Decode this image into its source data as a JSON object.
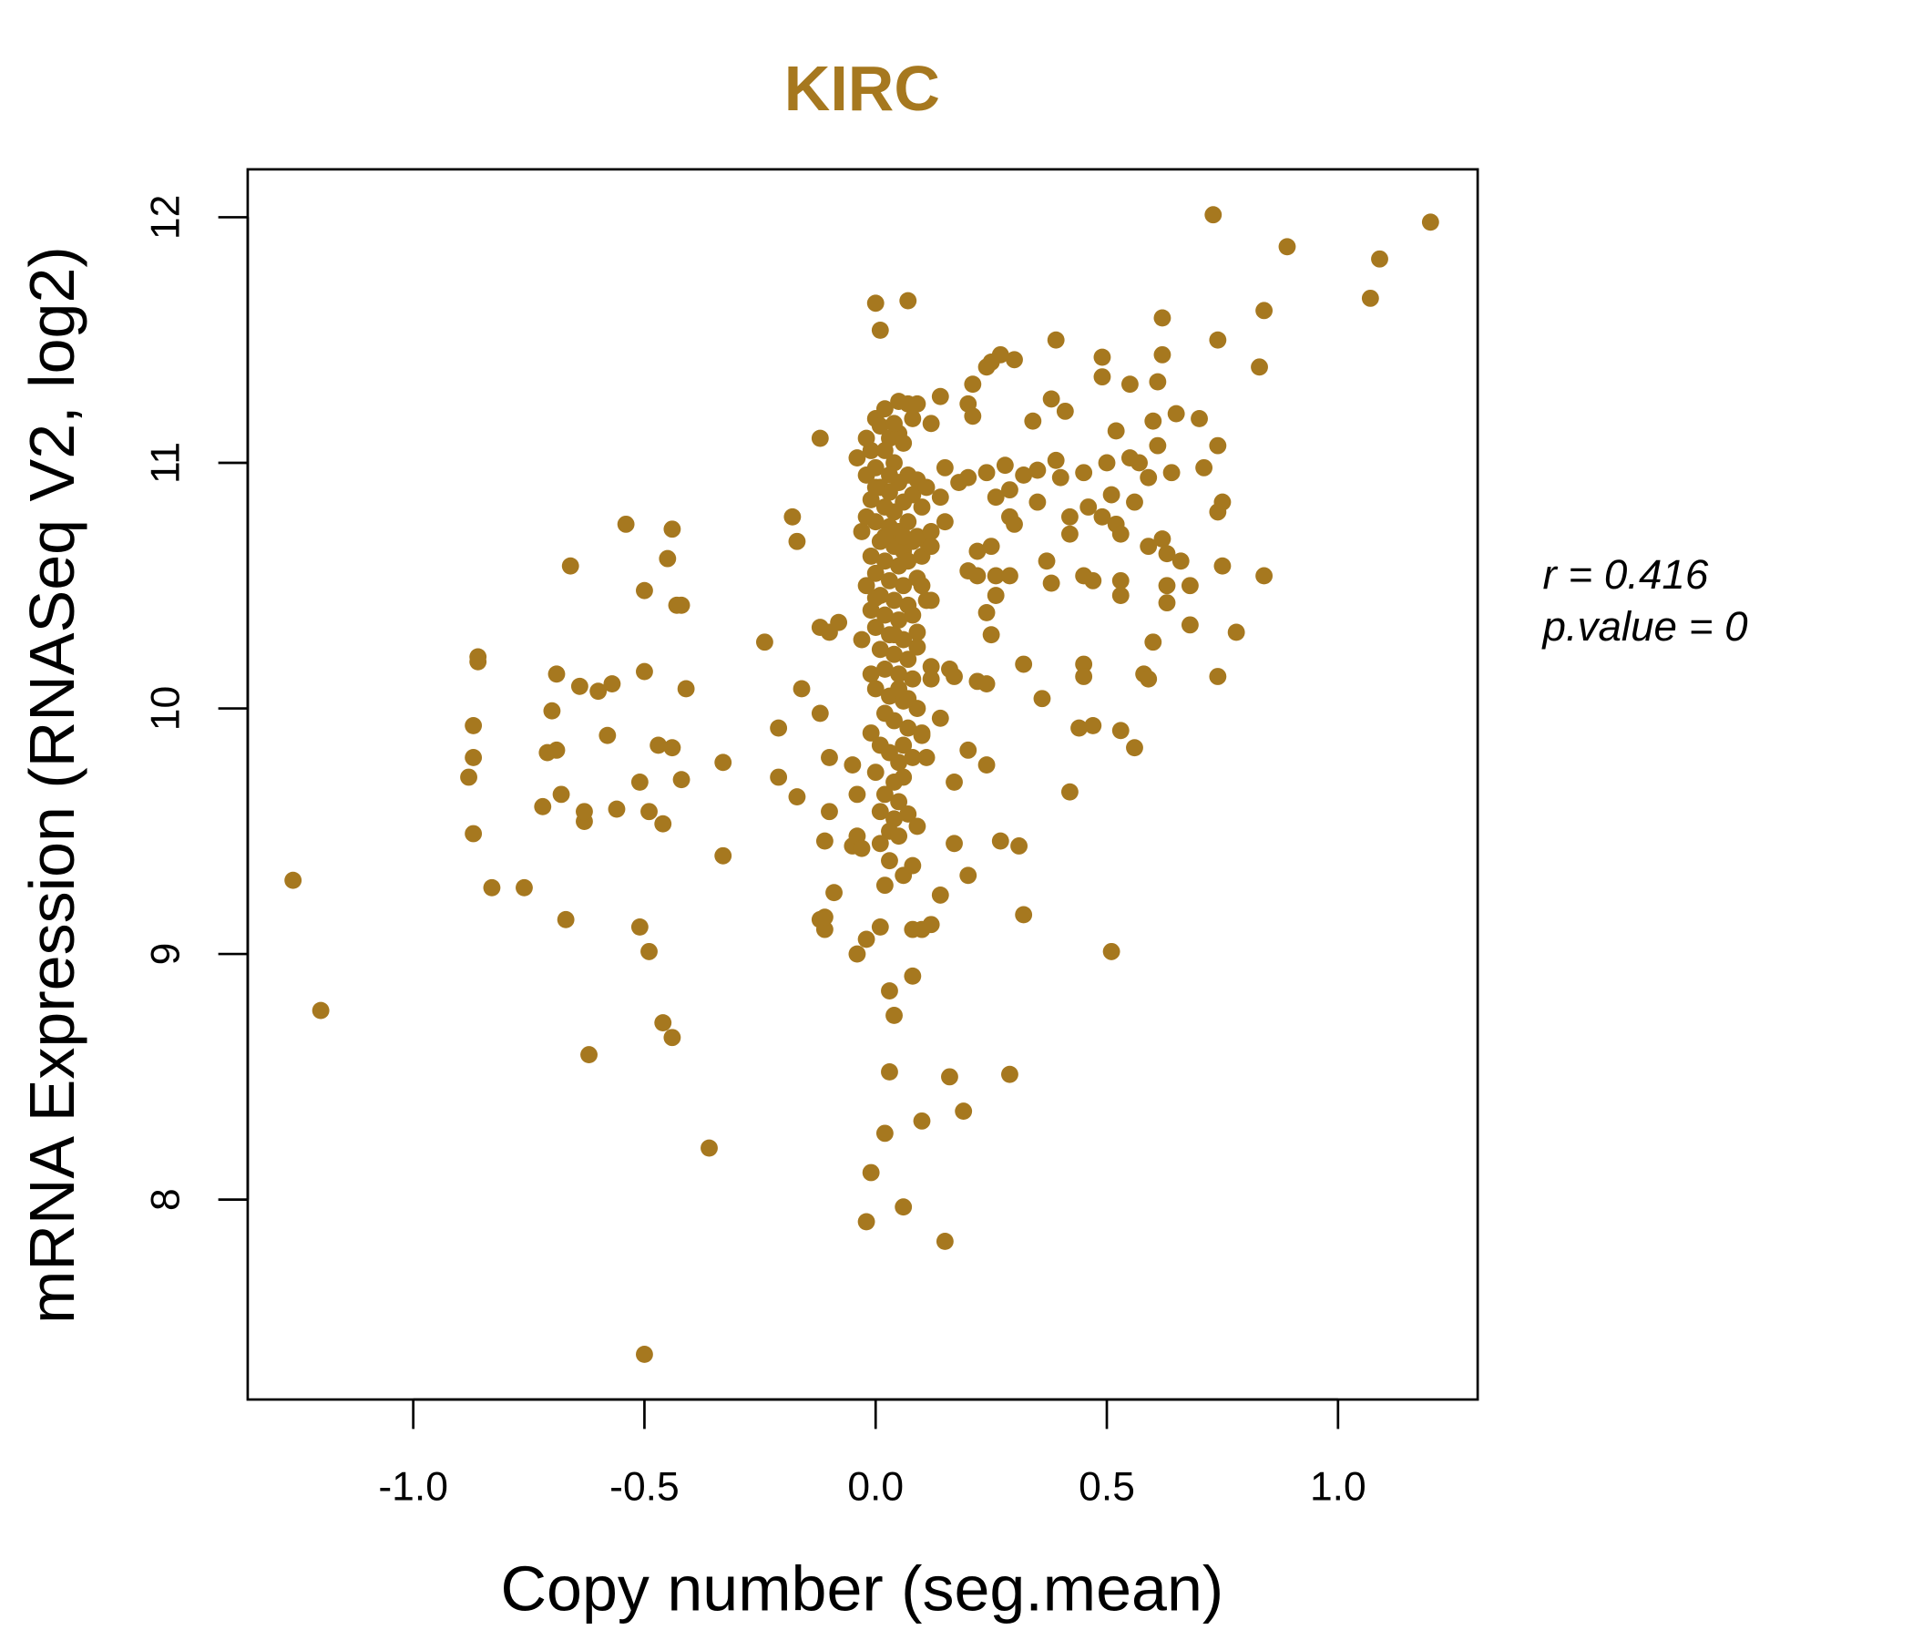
{
  "chart_data": {
    "type": "scatter",
    "title": "KIRC",
    "xlabel": "Copy number (seg.mean)",
    "ylabel": "mRNA Expression (RNASeq V2, log2)",
    "xlim": [
      -1.358,
      1.302
    ],
    "ylim": [
      7.186,
      12.195
    ],
    "grid": false,
    "point_color": "#A6781F",
    "title_color": "#A6781F",
    "xticks": [
      {
        "value": -1.0,
        "label": "-1.0"
      },
      {
        "value": -0.5,
        "label": "-0.5"
      },
      {
        "value": 0.0,
        "label": "0.0"
      },
      {
        "value": 0.5,
        "label": "0.5"
      },
      {
        "value": 1.0,
        "label": "1.0"
      }
    ],
    "yticks": [
      {
        "value": 8,
        "label": "8"
      },
      {
        "value": 9,
        "label": "9"
      },
      {
        "value": 10,
        "label": "10"
      },
      {
        "value": 11,
        "label": "11"
      },
      {
        "value": 12,
        "label": "12"
      }
    ],
    "annotations": {
      "r": "r = 0.416",
      "p_value": "p.value = 0"
    },
    "points": [
      [
        -1.26,
        9.3
      ],
      [
        -1.2,
        8.77
      ],
      [
        -0.88,
        9.72
      ],
      [
        -0.87,
        9.8
      ],
      [
        -0.87,
        9.93
      ],
      [
        -0.87,
        9.49
      ],
      [
        -0.86,
        10.19
      ],
      [
        -0.86,
        10.21
      ],
      [
        -0.83,
        9.27
      ],
      [
        -0.76,
        9.27
      ],
      [
        -0.72,
        9.6
      ],
      [
        -0.71,
        9.82
      ],
      [
        -0.7,
        9.99
      ],
      [
        -0.69,
        9.83
      ],
      [
        -0.69,
        10.14
      ],
      [
        -0.68,
        9.65
      ],
      [
        -0.67,
        9.14
      ],
      [
        -0.66,
        10.58
      ],
      [
        -0.64,
        10.09
      ],
      [
        -0.63,
        9.54
      ],
      [
        -0.63,
        9.58
      ],
      [
        -0.62,
        8.59
      ],
      [
        -0.6,
        10.07
      ],
      [
        -0.58,
        9.89
      ],
      [
        -0.57,
        10.1
      ],
      [
        -0.56,
        9.59
      ],
      [
        -0.54,
        10.75
      ],
      [
        -0.51,
        9.11
      ],
      [
        -0.51,
        9.7
      ],
      [
        -0.5,
        10.48
      ],
      [
        -0.5,
        10.15
      ],
      [
        -0.5,
        7.37
      ],
      [
        -0.49,
        9.01
      ],
      [
        -0.49,
        9.58
      ],
      [
        -0.47,
        9.85
      ],
      [
        -0.46,
        8.72
      ],
      [
        -0.46,
        9.53
      ],
      [
        -0.45,
        10.61
      ],
      [
        -0.44,
        10.73
      ],
      [
        -0.44,
        8.66
      ],
      [
        -0.44,
        9.84
      ],
      [
        -0.43,
        10.42
      ],
      [
        -0.42,
        9.71
      ],
      [
        -0.42,
        10.42
      ],
      [
        -0.41,
        10.08
      ],
      [
        -0.36,
        8.21
      ],
      [
        -0.33,
        9.78
      ],
      [
        -0.33,
        9.4
      ],
      [
        -0.24,
        10.27
      ],
      [
        -0.21,
        9.92
      ],
      [
        -0.21,
        9.72
      ],
      [
        -0.18,
        10.78
      ],
      [
        -0.17,
        10.68
      ],
      [
        -0.17,
        9.64
      ],
      [
        -0.16,
        10.08
      ],
      [
        -0.12,
        10.33
      ],
      [
        -0.12,
        9.98
      ],
      [
        -0.12,
        11.1
      ],
      [
        -0.12,
        9.14
      ],
      [
        -0.11,
        9.1
      ],
      [
        -0.11,
        9.46
      ],
      [
        -0.11,
        9.15
      ],
      [
        -0.1,
        9.8
      ],
      [
        -0.1,
        10.31
      ],
      [
        -0.1,
        9.58
      ],
      [
        -0.09,
        9.25
      ],
      [
        -0.08,
        10.35
      ],
      [
        -0.05,
        9.44
      ],
      [
        -0.05,
        9.77
      ],
      [
        -0.04,
        9.65
      ],
      [
        -0.04,
        9.48
      ],
      [
        -0.04,
        9.0
      ],
      [
        -0.04,
        11.02
      ],
      [
        -0.03,
        9.43
      ],
      [
        -0.02,
        9.06
      ],
      [
        -0.02,
        7.91
      ],
      [
        -0.01,
        8.11
      ],
      [
        0.0,
        11.65
      ],
      [
        0.01,
        11.54
      ],
      [
        0.01,
        9.11
      ],
      [
        0.02,
        8.27
      ],
      [
        0.03,
        8.85
      ],
      [
        0.03,
        8.52
      ],
      [
        0.04,
        8.75
      ],
      [
        0.06,
        7.97
      ],
      [
        0.07,
        11.66
      ],
      [
        0.08,
        9.1
      ],
      [
        0.08,
        8.91
      ],
      [
        0.1,
        8.32
      ],
      [
        0.1,
        9.1
      ],
      [
        0.12,
        9.12
      ],
      [
        0.14,
        9.24
      ],
      [
        0.15,
        7.83
      ],
      [
        0.16,
        8.5
      ],
      [
        0.17,
        9.45
      ],
      [
        0.17,
        9.7
      ],
      [
        0.19,
        8.36
      ],
      [
        0.2,
        9.32
      ],
      [
        0.2,
        9.83
      ],
      [
        0.24,
        9.77
      ],
      [
        0.27,
        9.46
      ],
      [
        0.29,
        8.51
      ],
      [
        0.31,
        9.44
      ],
      [
        0.32,
        9.16
      ],
      [
        0.36,
        10.04
      ],
      [
        0.42,
        9.66
      ],
      [
        0.44,
        9.92
      ],
      [
        0.47,
        9.93
      ],
      [
        0.51,
        9.01
      ],
      [
        0.53,
        9.91
      ],
      [
        0.56,
        9.84
      ],
      [
        0.58,
        10.14
      ],
      [
        0.59,
        10.12
      ],
      [
        0.6,
        10.27
      ],
      [
        0.73,
        12.01
      ],
      [
        1.2,
        11.98
      ],
      [
        1.09,
        11.83
      ],
      [
        0.89,
        11.88
      ],
      [
        1.07,
        11.67
      ],
      [
        0.84,
        11.62
      ],
      [
        0.62,
        11.59
      ],
      [
        0.39,
        11.5
      ],
      [
        0.74,
        11.5
      ],
      [
        0.49,
        11.43
      ],
      [
        0.62,
        11.44
      ],
      [
        0.83,
        11.39
      ],
      [
        0.27,
        11.44
      ],
      [
        0.3,
        11.42
      ],
      [
        0.25,
        11.41
      ],
      [
        0.24,
        11.39
      ],
      [
        0.49,
        11.35
      ],
      [
        0.55,
        11.32
      ],
      [
        0.61,
        11.33
      ],
      [
        0.21,
        11.32
      ],
      [
        0.14,
        11.27
      ],
      [
        0.38,
        11.26
      ],
      [
        0.2,
        11.24
      ],
      [
        0.41,
        11.21
      ],
      [
        0.65,
        11.2
      ],
      [
        0.7,
        11.18
      ],
      [
        0.21,
        11.19
      ],
      [
        0.34,
        11.17
      ],
      [
        0.6,
        11.17
      ],
      [
        0.52,
        11.13
      ],
      [
        0.61,
        11.07
      ],
      [
        0.74,
        11.07
      ],
      [
        0.55,
        11.02
      ],
      [
        0.57,
        11.0
      ],
      [
        0.39,
        11.01
      ],
      [
        0.5,
        11.0
      ],
      [
        0.71,
        10.98
      ],
      [
        0.64,
        10.96
      ],
      [
        0.45,
        10.96
      ],
      [
        0.59,
        10.94
      ],
      [
        0.35,
        10.97
      ],
      [
        0.28,
        10.99
      ],
      [
        0.24,
        10.96
      ],
      [
        0.2,
        10.94
      ],
      [
        0.32,
        10.95
      ],
      [
        0.4,
        10.94
      ],
      [
        0.15,
        10.98
      ],
      [
        0.18,
        10.92
      ],
      [
        0.29,
        10.89
      ],
      [
        0.14,
        10.86
      ],
      [
        0.26,
        10.86
      ],
      [
        0.51,
        10.87
      ],
      [
        0.35,
        10.84
      ],
      [
        0.75,
        10.84
      ],
      [
        0.56,
        10.84
      ],
      [
        0.46,
        10.82
      ],
      [
        0.74,
        10.8
      ],
      [
        0.29,
        10.78
      ],
      [
        0.49,
        10.78
      ],
      [
        0.15,
        10.76
      ],
      [
        0.42,
        10.78
      ],
      [
        0.3,
        10.75
      ],
      [
        0.52,
        10.75
      ],
      [
        0.53,
        10.71
      ],
      [
        0.42,
        10.71
      ],
      [
        0.11,
        10.68
      ],
      [
        0.62,
        10.69
      ],
      [
        0.59,
        10.66
      ],
      [
        0.22,
        10.64
      ],
      [
        0.25,
        10.66
      ],
      [
        0.63,
        10.63
      ],
      [
        0.66,
        10.6
      ],
      [
        0.37,
        10.6
      ],
      [
        0.75,
        10.58
      ],
      [
        0.2,
        10.56
      ],
      [
        0.22,
        10.54
      ],
      [
        0.26,
        10.54
      ],
      [
        0.29,
        10.54
      ],
      [
        0.45,
        10.54
      ],
      [
        0.84,
        10.54
      ],
      [
        0.47,
        10.52
      ],
      [
        0.53,
        10.52
      ],
      [
        0.38,
        10.51
      ],
      [
        0.63,
        10.5
      ],
      [
        0.68,
        10.5
      ],
      [
        0.26,
        10.46
      ],
      [
        0.53,
        10.46
      ],
      [
        0.63,
        10.43
      ],
      [
        0.24,
        10.39
      ],
      [
        0.68,
        10.34
      ],
      [
        0.78,
        10.31
      ],
      [
        0.25,
        10.3
      ],
      [
        0.32,
        10.18
      ],
      [
        0.45,
        10.18
      ],
      [
        0.45,
        10.13
      ],
      [
        0.12,
        10.17
      ],
      [
        0.16,
        10.16
      ],
      [
        0.17,
        10.13
      ],
      [
        0.12,
        10.12
      ],
      [
        0.22,
        10.11
      ],
      [
        0.24,
        10.1
      ],
      [
        0.74,
        10.13
      ],
      [
        0.14,
        9.96
      ],
      [
        0.1,
        9.89
      ],
      [
        0.11,
        9.8
      ],
      [
        0.0,
        11.18
      ],
      [
        0.01,
        11.15
      ],
      [
        0.02,
        11.22
      ],
      [
        0.05,
        11.25
      ],
      [
        0.07,
        11.24
      ],
      [
        0.09,
        11.24
      ],
      [
        0.03,
        11.1
      ],
      [
        0.05,
        11.12
      ],
      [
        -0.01,
        11.05
      ],
      [
        0.02,
        11.05
      ],
      [
        0.06,
        11.08
      ],
      [
        0.04,
        11.0
      ],
      [
        0.0,
        10.98
      ],
      [
        -0.02,
        10.95
      ],
      [
        0.07,
        10.95
      ],
      [
        0.09,
        10.93
      ],
      [
        0.01,
        10.9
      ],
      [
        0.03,
        10.88
      ],
      [
        0.05,
        10.92
      ],
      [
        0.08,
        10.87
      ],
      [
        0.11,
        10.9
      ],
      [
        -0.01,
        10.85
      ],
      [
        0.02,
        10.82
      ],
      [
        0.04,
        10.8
      ],
      [
        0.06,
        10.84
      ],
      [
        0.1,
        10.82
      ],
      [
        -0.02,
        10.78
      ],
      [
        0.0,
        10.76
      ],
      [
        0.03,
        10.74
      ],
      [
        0.05,
        10.72
      ],
      [
        0.07,
        10.76
      ],
      [
        0.09,
        10.7
      ],
      [
        0.12,
        10.72
      ],
      [
        -0.03,
        10.72
      ],
      [
        0.01,
        10.68
      ],
      [
        0.04,
        10.66
      ],
      [
        0.06,
        10.64
      ],
      [
        0.08,
        10.68
      ],
      [
        -0.01,
        10.62
      ],
      [
        0.02,
        10.6
      ],
      [
        0.05,
        10.58
      ],
      [
        0.07,
        10.6
      ],
      [
        0.1,
        10.62
      ],
      [
        0.0,
        10.55
      ],
      [
        0.03,
        10.52
      ],
      [
        0.06,
        10.5
      ],
      [
        0.09,
        10.53
      ],
      [
        -0.02,
        10.5
      ],
      [
        0.01,
        10.46
      ],
      [
        0.04,
        10.44
      ],
      [
        0.07,
        10.42
      ],
      [
        0.11,
        10.44
      ],
      [
        -0.01,
        10.4
      ],
      [
        0.02,
        10.38
      ],
      [
        0.05,
        10.36
      ],
      [
        0.08,
        10.38
      ],
      [
        0.0,
        10.33
      ],
      [
        0.03,
        10.3
      ],
      [
        0.06,
        10.28
      ],
      [
        -0.03,
        10.28
      ],
      [
        0.09,
        10.31
      ],
      [
        0.01,
        10.24
      ],
      [
        0.04,
        10.22
      ],
      [
        0.07,
        10.2
      ],
      [
        0.02,
        10.16
      ],
      [
        0.05,
        10.14
      ],
      [
        -0.01,
        10.14
      ],
      [
        0.08,
        10.12
      ],
      [
        0.0,
        10.08
      ],
      [
        0.03,
        10.05
      ],
      [
        0.06,
        10.03
      ],
      [
        0.02,
        9.98
      ],
      [
        0.04,
        9.95
      ],
      [
        -0.01,
        9.9
      ],
      [
        0.07,
        9.92
      ],
      [
        0.01,
        9.85
      ],
      [
        0.03,
        9.82
      ],
      [
        0.05,
        9.78
      ],
      [
        0.08,
        9.8
      ],
      [
        0.0,
        9.74
      ],
      [
        0.04,
        9.7
      ],
      [
        0.06,
        9.72
      ],
      [
        0.02,
        9.65
      ],
      [
        0.05,
        9.62
      ],
      [
        0.01,
        9.58
      ],
      [
        0.04,
        9.55
      ],
      [
        0.07,
        9.57
      ],
      [
        0.03,
        9.5
      ],
      [
        0.05,
        9.48
      ],
      [
        0.01,
        9.45
      ],
      [
        0.03,
        9.38
      ],
      [
        0.06,
        9.32
      ],
      [
        0.02,
        9.28
      ],
      [
        0.08,
        9.36
      ],
      [
        0.09,
        9.52
      ],
      [
        0.1,
        9.9
      ],
      [
        0.09,
        10.0
      ],
      [
        0.12,
        10.44
      ],
      [
        0.12,
        10.66
      ],
      [
        0.1,
        10.5
      ],
      [
        0.12,
        11.16
      ],
      [
        0.08,
        11.18
      ],
      [
        0.04,
        11.16
      ],
      [
        -0.02,
        11.1
      ],
      [
        0.0,
        10.9
      ],
      [
        0.06,
        10.7
      ],
      [
        0.09,
        10.25
      ],
      [
        0.07,
        10.04
      ],
      [
        0.06,
        9.85
      ],
      [
        0.02,
        10.7
      ],
      [
        0.03,
        10.95
      ],
      [
        0.0,
        10.45
      ],
      [
        0.05,
        10.08
      ],
      [
        0.04,
        10.3
      ]
    ]
  }
}
